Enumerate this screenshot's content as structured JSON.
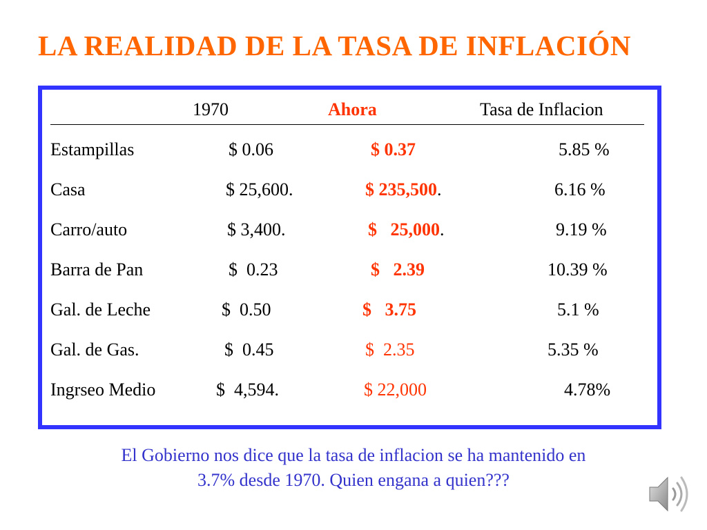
{
  "title": "LA REALIDAD DE LA TASA DE INFLACIÓN",
  "table": {
    "header": {
      "y1970": "1970",
      "now": "Ahora",
      "rate": "Tasa de Inflacion"
    },
    "rows": [
      {
        "item": "Estampillas",
        "v1970": "$ 0.06",
        "now": "$ 0.37",
        "now_suffix": "",
        "rate": "5.85 %"
      },
      {
        "item": "Casa",
        "v1970": "$ 25,600.",
        "now": "$ 235,500",
        "now_suffix": ".",
        "rate": "6.16 %"
      },
      {
        "item": "Carro/auto",
        "v1970": "$ 3,400.",
        "now": "$   25,000",
        "now_suffix": ".",
        "rate": "9.19 %"
      },
      {
        "item": "Barra de Pan",
        "v1970": "$  0.23",
        "now": "$   2.39",
        "now_suffix": "",
        "rate": "10.39 %"
      },
      {
        "item": "Gal. de Leche",
        "v1970": "$  0.50",
        "now": "$   3.75",
        "now_suffix": "",
        "rate": "5.1 %"
      },
      {
        "item": "Gal. de  Gas.",
        "v1970": "$  0.45",
        "now": "$  2.35",
        "now_suffix": "",
        "rate": "5.35 %"
      },
      {
        "item": "Ingrseo Medio",
        "v1970": "$  4,594.",
        "now": "$ 22,000",
        "now_suffix": "",
        "rate": "4.78%"
      }
    ]
  },
  "footer": {
    "line1": "El Gobierno nos dice que la tasa de inflacion se ha mantenido en",
    "line2": "3.7% desde 1970. Quien engana a quien???"
  },
  "colors": {
    "title": "#ff6600",
    "border": "#3333ff",
    "accent": "#ff3300",
    "footer": "#3333cc"
  },
  "icons": {
    "audio": "speaker-icon"
  }
}
